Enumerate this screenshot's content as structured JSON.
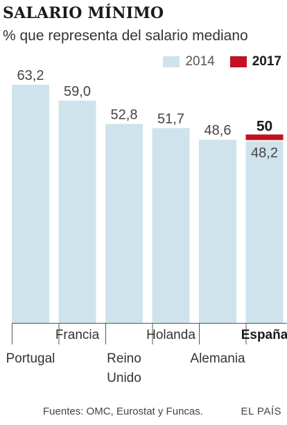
{
  "header": {
    "title": "SALARIO MÍNIMO",
    "subtitle": "% que representa del salario mediano"
  },
  "legend": {
    "items": [
      {
        "label": "2014",
        "color": "#cfe3ec"
      },
      {
        "label": "2017",
        "color": "#c0121f"
      }
    ]
  },
  "chart_data": {
    "type": "bar",
    "title": "SALARIO MÍNIMO",
    "subtitle": "% que representa del salario mediano",
    "categories": [
      "Portugal",
      "Francia",
      "Reino Unido",
      "Holanda",
      "Alemania",
      "España"
    ],
    "series": [
      {
        "name": "2014",
        "values": [
          63.2,
          59.0,
          52.8,
          51.7,
          48.6,
          48.2
        ],
        "color": "#cfe3ec"
      },
      {
        "name": "2017",
        "values": [
          null,
          null,
          null,
          null,
          null,
          50
        ],
        "color": "#c0121f"
      }
    ],
    "value_labels_2014": [
      "63,2",
      "59,0",
      "52,8",
      "51,7",
      "48,6",
      "48,2"
    ],
    "value_labels_2017": [
      "",
      "",
      "",
      "",
      "",
      "50"
    ],
    "category_label_lines": [
      [
        "Portugal"
      ],
      [
        "Francia"
      ],
      [
        "Reino",
        "Unido"
      ],
      [
        "Holanda"
      ],
      [
        "Alemania"
      ],
      [
        "España"
      ]
    ],
    "highlight_category": "España",
    "ylim": [
      0,
      64
    ],
    "grid": false,
    "legend_position": "top-right"
  },
  "footer": {
    "source": "Fuentes: OMC, Eurostat y Funcas.",
    "brand": "EL PAÍS"
  }
}
